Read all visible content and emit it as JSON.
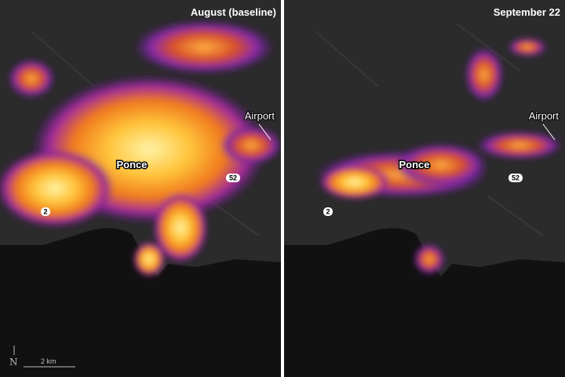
{
  "panels": [
    {
      "title": "August (baseline)",
      "city": "Ponce",
      "airport": "Airport",
      "route_52": "52",
      "route_2": "2"
    },
    {
      "title": "September 22",
      "city": "Ponce",
      "airport": "Airport",
      "route_52": "52",
      "route_2": "2"
    }
  ],
  "scale_bar": "2 km",
  "north": "N"
}
